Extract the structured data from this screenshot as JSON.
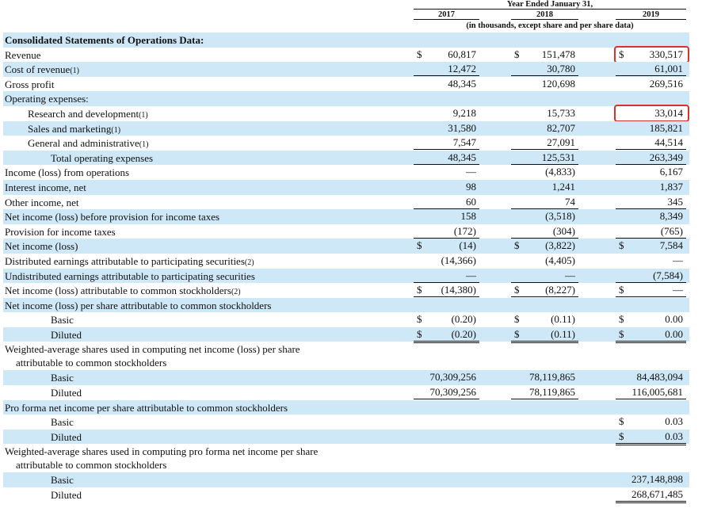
{
  "header": {
    "span_title": "Year Ended January 31,",
    "years": [
      "2017",
      "2018",
      "2019"
    ],
    "subtitle": "(in thousands, except share and per share data)"
  },
  "rows": [
    {
      "label": "Consolidated Statements of Operations Data:",
      "bold": true
    },
    {
      "label": "Revenue",
      "cells": [
        {
          "currency": "$",
          "value": "60,817"
        },
        {
          "currency": "$",
          "value": "151,478"
        },
        {
          "currency": "$",
          "value": "330,517",
          "highlight": true
        }
      ]
    },
    {
      "label": "Cost of revenue",
      "note": "(1)",
      "cells": [
        {
          "value": "12,472",
          "rule": "single"
        },
        {
          "value": "30,780",
          "rule": "single"
        },
        {
          "value": "61,001",
          "rule": "single"
        }
      ]
    },
    {
      "label": "Gross profit",
      "cells": [
        {
          "value": "48,345"
        },
        {
          "value": "120,698"
        },
        {
          "value": "269,516"
        }
      ]
    },
    {
      "label": "Operating expenses:"
    },
    {
      "label": "Research and development",
      "note": "(1)",
      "indent": 1,
      "cells": [
        {
          "value": "9,218"
        },
        {
          "value": "15,733"
        },
        {
          "value": "33,014",
          "highlight": true
        }
      ]
    },
    {
      "label": "Sales and marketing",
      "note": "(1)",
      "indent": 1,
      "cells": [
        {
          "value": "31,580"
        },
        {
          "value": "82,707"
        },
        {
          "value": "185,821"
        }
      ]
    },
    {
      "label": "General and administrative",
      "note": "(1)",
      "indent": 1,
      "cells": [
        {
          "value": "7,547",
          "rule": "single"
        },
        {
          "value": "27,091",
          "rule": "single"
        },
        {
          "value": "44,514",
          "rule": "single"
        }
      ]
    },
    {
      "label": "Total operating expenses",
      "indent": 2,
      "cells": [
        {
          "value": "48,345",
          "rule": "single"
        },
        {
          "value": "125,531",
          "rule": "single"
        },
        {
          "value": "263,349",
          "rule": "single"
        }
      ]
    },
    {
      "label": "Income (loss) from operations",
      "cells": [
        {
          "value": "—"
        },
        {
          "value": "(4,833)"
        },
        {
          "value": "6,167"
        }
      ]
    },
    {
      "label": "Interest income, net",
      "cells": [
        {
          "value": "98"
        },
        {
          "value": "1,241"
        },
        {
          "value": "1,837"
        }
      ]
    },
    {
      "label": "Other income, net",
      "cells": [
        {
          "value": "60",
          "rule": "single"
        },
        {
          "value": "74",
          "rule": "single"
        },
        {
          "value": "345",
          "rule": "single"
        }
      ]
    },
    {
      "label": "Net income (loss) before provision for income taxes",
      "cells": [
        {
          "value": "158"
        },
        {
          "value": "(3,518)"
        },
        {
          "value": "8,349"
        }
      ]
    },
    {
      "label": "Provision for income taxes",
      "cells": [
        {
          "value": "(172)",
          "rule": "single"
        },
        {
          "value": "(304)",
          "rule": "single"
        },
        {
          "value": "(765)",
          "rule": "single"
        }
      ]
    },
    {
      "label": "Net income (loss)",
      "cells": [
        {
          "currency": "$",
          "value": "(14)"
        },
        {
          "currency": "$",
          "value": "(3,822)"
        },
        {
          "currency": "$",
          "value": "7,584"
        }
      ]
    },
    {
      "label": "Distributed earnings attributable to participating securities",
      "note": "(2)",
      "cells": [
        {
          "value": "(14,366)"
        },
        {
          "value": "(4,405)"
        },
        {
          "value": "—"
        }
      ]
    },
    {
      "label": "Undistributed earnings attributable to participating securities",
      "cells": [
        {
          "value": "—",
          "rule": "single"
        },
        {
          "value": "—",
          "rule": "single"
        },
        {
          "value": "(7,584)",
          "rule": "single"
        }
      ]
    },
    {
      "label": "Net income (loss) attributable to common stockholders",
      "note": "(2)",
      "cells": [
        {
          "currency": "$",
          "value": "(14,380)",
          "rule": "double"
        },
        {
          "currency": "$",
          "value": "(8,227)",
          "rule": "double"
        },
        {
          "currency": "$",
          "value": "—",
          "rule": "double"
        }
      ]
    },
    {
      "label": "Net income (loss) per share attributable to common stockholders"
    },
    {
      "label": "Basic",
      "indent": 2,
      "cells": [
        {
          "currency": "$",
          "value": "(0.20)"
        },
        {
          "currency": "$",
          "value": "(0.11)"
        },
        {
          "currency": "$",
          "value": "0.00"
        }
      ]
    },
    {
      "label": "Diluted",
      "indent": 2,
      "cells": [
        {
          "currency": "$",
          "value": "(0.20)",
          "rule": "double"
        },
        {
          "currency": "$",
          "value": "(0.11)",
          "rule": "double"
        },
        {
          "currency": "$",
          "value": "0.00",
          "rule": "double"
        }
      ]
    },
    {
      "lines": [
        "Weighted-average shares used in computing net income (loss) per share",
        "attributable to common stockholders"
      ]
    },
    {
      "label": "Basic",
      "indent": 2,
      "cells": [
        {
          "value": "70,309,256"
        },
        {
          "value": "78,119,865"
        },
        {
          "value": "84,483,094"
        }
      ]
    },
    {
      "label": "Diluted",
      "indent": 2,
      "cells": [
        {
          "value": "70,309,256",
          "rule": "double"
        },
        {
          "value": "78,119,865",
          "rule": "double"
        },
        {
          "value": "116,005,681",
          "rule": "double"
        }
      ]
    },
    {
      "label": "Pro forma net income per share attributable to common stockholders"
    },
    {
      "label": "Basic",
      "indent": 2,
      "cells": [
        null,
        null,
        {
          "currency": "$",
          "value": "0.03"
        }
      ]
    },
    {
      "label": "Diluted",
      "indent": 2,
      "cells": [
        null,
        null,
        {
          "currency": "$",
          "value": "0.03",
          "rule": "double"
        }
      ]
    },
    {
      "lines": [
        "Weighted-average shares used in computing pro forma net income per share",
        "attributable to common stockholders"
      ]
    },
    {
      "label": "Basic",
      "indent": 2,
      "cells": [
        null,
        null,
        {
          "value": "237,148,898"
        }
      ]
    },
    {
      "label": "Diluted",
      "indent": 2,
      "cells": [
        null,
        null,
        {
          "value": "268,671,485",
          "rule": "double"
        }
      ]
    }
  ]
}
